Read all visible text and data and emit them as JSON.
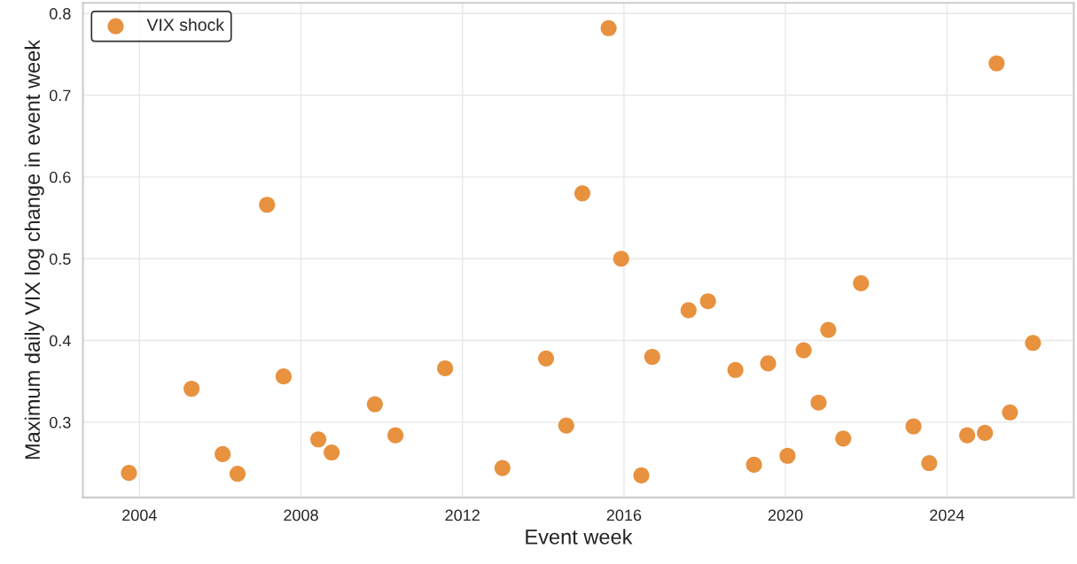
{
  "chart_data": {
    "type": "scatter",
    "xlabel": "Event week",
    "ylabel": "Maximum daily VIX log change in event week",
    "x": [
      2003.74,
      2005.29,
      2006.06,
      2006.43,
      2007.16,
      2007.57,
      2008.43,
      2008.76,
      2009.83,
      2010.34,
      2011.57,
      2012.99,
      2014.07,
      2014.57,
      2014.97,
      2015.62,
      2015.93,
      2016.43,
      2016.7,
      2017.6,
      2018.08,
      2018.76,
      2019.22,
      2019.57,
      2020.05,
      2020.45,
      2020.82,
      2021.06,
      2021.43,
      2021.87,
      2023.17,
      2023.56,
      2024.5,
      2024.94,
      2025.23,
      2025.56,
      2026.13
    ],
    "series": [
      {
        "name": "VIX shock",
        "color": "#e8913f",
        "values": [
          0.238,
          0.341,
          0.261,
          0.237,
          0.566,
          0.356,
          0.279,
          0.263,
          0.322,
          0.284,
          0.366,
          0.244,
          0.378,
          0.296,
          0.58,
          0.782,
          0.5,
          0.235,
          0.38,
          0.437,
          0.448,
          0.364,
          0.248,
          0.372,
          0.259,
          0.388,
          0.324,
          0.413,
          0.28,
          0.47,
          0.295,
          0.25,
          0.284,
          0.287,
          0.739,
          0.312,
          0.397
        ]
      }
    ],
    "xlim": [
      2002.6,
      2027.14
    ],
    "ylim": [
      0.208,
      0.813
    ],
    "xticks": [
      2004,
      2008,
      2012,
      2016,
      2020,
      2024
    ],
    "yticks": [
      0.3,
      0.4,
      0.5,
      0.6,
      0.7,
      0.8
    ],
    "grid": true,
    "legend": "top left",
    "marker": "circle"
  }
}
